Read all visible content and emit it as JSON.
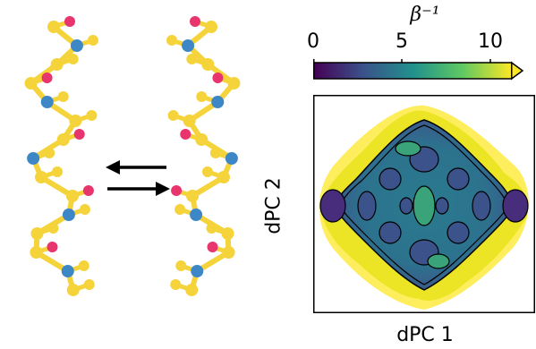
{
  "colorbar": {
    "title": "β⁻¹",
    "ticks": [
      "0",
      "5",
      "10"
    ],
    "range": [
      0,
      12
    ],
    "colormap": [
      "#440154",
      "#3b528b",
      "#21918c",
      "#5ec962",
      "#fde725"
    ]
  },
  "axes": {
    "xlabel": "dPC 1",
    "ylabel": "dPC 2"
  },
  "colors": {
    "atom_yellow": "#f5d33a",
    "atom_blue": "#3d87c7",
    "atom_red": "#e8356d",
    "arrow": "#000000"
  }
}
